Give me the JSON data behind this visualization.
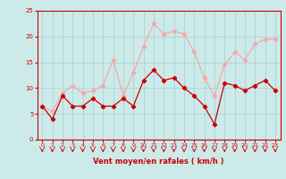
{
  "x": [
    0,
    1,
    2,
    3,
    4,
    5,
    6,
    7,
    8,
    9,
    10,
    11,
    12,
    13,
    14,
    15,
    16,
    17,
    18,
    19,
    20,
    21,
    22,
    23
  ],
  "wind_avg": [
    6.5,
    4.0,
    8.5,
    6.5,
    6.5,
    8.0,
    6.5,
    6.5,
    8.0,
    6.5,
    11.5,
    13.5,
    11.5,
    12.0,
    10.0,
    8.5,
    6.5,
    3.0,
    11.0,
    10.5,
    9.5,
    10.5,
    11.5,
    9.5
  ],
  "wind_gust": [
    6.5,
    5.5,
    9.0,
    10.5,
    9.0,
    9.5,
    10.5,
    15.5,
    8.5,
    13.0,
    18.0,
    22.5,
    20.5,
    21.0,
    20.5,
    17.0,
    12.0,
    8.5,
    14.5,
    17.0,
    15.5,
    18.5,
    19.5,
    19.5
  ],
  "xlim": [
    -0.5,
    23.5
  ],
  "ylim": [
    0,
    25
  ],
  "yticks": [
    0,
    5,
    10,
    15,
    20,
    25
  ],
  "xticks": [
    0,
    1,
    2,
    3,
    4,
    5,
    6,
    7,
    8,
    9,
    10,
    11,
    12,
    13,
    14,
    15,
    16,
    17,
    18,
    19,
    20,
    21,
    22,
    23
  ],
  "xlabel": "Vent moyen/en rafales ( km/h )",
  "color_avg": "#cc0000",
  "color_gust": "#f4aaaa",
  "bg_color": "#cceaea",
  "grid_color": "#aacccc",
  "axis_color": "#cc0000",
  "label_color": "#cc0000",
  "tick_label_color": "#cc0000"
}
